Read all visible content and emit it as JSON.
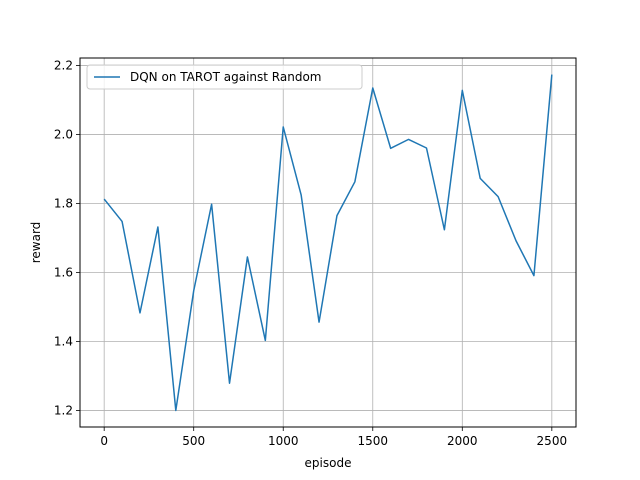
{
  "chart_data": {
    "type": "line",
    "xlabel": "episode",
    "ylabel": "reward",
    "xlim": [
      -135,
      2635
    ],
    "ylim": [
      1.152,
      2.222
    ],
    "xticks": [
      0,
      500,
      1000,
      1500,
      2000,
      2500
    ],
    "xtick_labels": [
      "0",
      "500",
      "1000",
      "1500",
      "2000",
      "2500"
    ],
    "yticks": [
      1.2,
      1.4,
      1.6,
      1.8,
      2.0,
      2.2
    ],
    "ytick_labels": [
      "1.2",
      "1.4",
      "1.6",
      "1.8",
      "2.0",
      "2.2"
    ],
    "grid": true,
    "legend_position": "upper-left",
    "series": [
      {
        "name": "DQN on TAROT against Random",
        "color": "#1f77b4",
        "x": [
          0,
          100,
          200,
          300,
          400,
          500,
          600,
          700,
          800,
          900,
          1000,
          1100,
          1200,
          1300,
          1400,
          1500,
          1600,
          1700,
          1800,
          1900,
          2000,
          2100,
          2200,
          2300,
          2400,
          2500
        ],
        "y": [
          1.813,
          1.748,
          1.483,
          1.732,
          1.2,
          1.547,
          1.798,
          1.279,
          1.645,
          1.403,
          2.022,
          1.825,
          1.456,
          1.765,
          1.863,
          2.135,
          1.96,
          1.986,
          1.961,
          1.724,
          2.128,
          1.873,
          1.82,
          1.692,
          1.591,
          2.174
        ]
      }
    ]
  }
}
